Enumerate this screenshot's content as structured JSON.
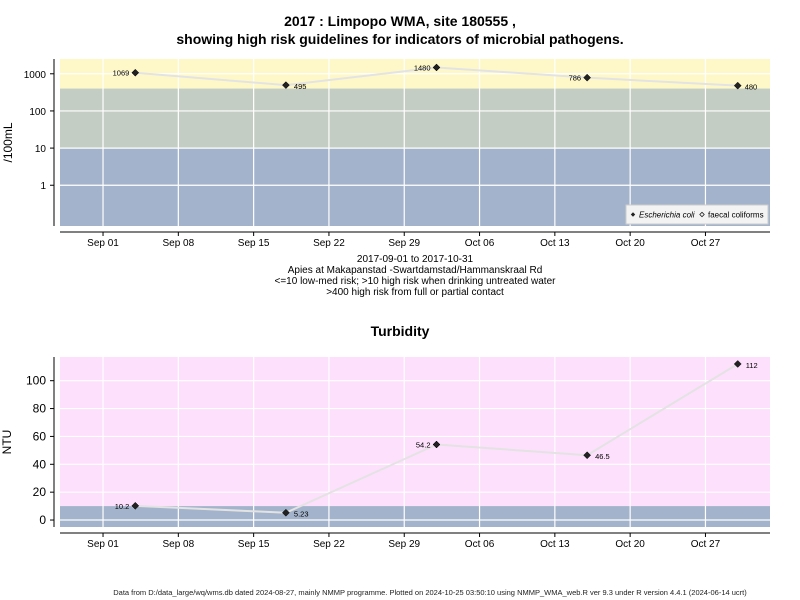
{
  "titles": {
    "main_line1": "2017 : Limpopo WMA, site 180555 ,",
    "main_line2": "showing high risk guidelines for indicators of microbial pathogens.",
    "turbidity": "Turbidity"
  },
  "caption": {
    "dates": "2017-09-01 to 2017-10-31",
    "site": "Apies at Makapanstad -Swartdamstad/Hammanskraal Rd",
    "risk1": "<=10 low-med risk; >10 high risk when drinking untreated water",
    "risk2": ">400 high risk from full or partial contact"
  },
  "footer": "Data from D:/data_large/wq/wms.db dated 2024-08-27, mainly NMMP programme. Plotted on 2024-10-25 03:50:10 using NMMP_WMA_web.R ver 9.3 under R version 4.4.1 (2024-06-14 ucrt)",
  "colors": {
    "zone_low": "#a3b3cb",
    "zone_mid": "#c3cdc3",
    "zone_high": "#fef8c8",
    "turb_high": "#fde0fb",
    "grid": "#ffffff",
    "line": "#e3e3e3",
    "point": "#222222"
  },
  "chart_data": [
    {
      "type": "line",
      "title": "2017 : Limpopo WMA, site 180555 , showing high risk guidelines for indicators of microbial pathogens.",
      "ylabel": "/100mL",
      "y_scale": "log",
      "ylim": [
        0.08,
        2500
      ],
      "y_ticks": [
        1,
        10,
        100,
        1000
      ],
      "y_tick_labels": [
        "1",
        "10",
        "100",
        "1000"
      ],
      "xlim": [
        "2017-08-28",
        "2017-11-02"
      ],
      "x_ticks": [
        "2017-09-01",
        "2017-09-08",
        "2017-09-15",
        "2017-09-22",
        "2017-09-29",
        "2017-10-06",
        "2017-10-13",
        "2017-10-20",
        "2017-10-27"
      ],
      "x_tick_labels": [
        "Sep 01",
        "Sep 08",
        "Sep 15",
        "Sep 22",
        "Sep 29",
        "Oct 06",
        "Oct 13",
        "Oct 20",
        "Oct 27"
      ],
      "grid": true,
      "zones": [
        {
          "from": 400,
          "to": 2500,
          "color": "#fef8c8"
        },
        {
          "from": 10,
          "to": 400,
          "color": "#c3cdc3"
        },
        {
          "from": 0.08,
          "to": 10,
          "color": "#a3b3cb"
        }
      ],
      "legend": {
        "position": "bottom-right",
        "entries": [
          {
            "label": "Escherichia coli",
            "marker": "filled-diamond",
            "italic": true
          },
          {
            "label": "faecal coliforms",
            "marker": "open-diamond",
            "italic": false
          }
        ]
      },
      "series": [
        {
          "name": "Escherichia coli",
          "x": [
            "2017-09-04",
            "2017-09-18",
            "2017-10-02",
            "2017-10-16",
            "2017-10-30"
          ],
          "values": [
            1069,
            495,
            1480,
            786,
            480
          ],
          "labels": [
            "1069",
            "495",
            "1480",
            "786",
            "480"
          ]
        }
      ]
    },
    {
      "type": "line",
      "title": "Turbidity",
      "ylabel": "NTU",
      "ylim": [
        -5,
        117
      ],
      "y_ticks": [
        0,
        20,
        40,
        60,
        80,
        100
      ],
      "y_tick_labels": [
        "0",
        "20",
        "40",
        "60",
        "80",
        "100"
      ],
      "xlim": [
        "2017-08-28",
        "2017-11-02"
      ],
      "x_ticks": [
        "2017-09-01",
        "2017-09-08",
        "2017-09-15",
        "2017-09-22",
        "2017-09-29",
        "2017-10-06",
        "2017-10-13",
        "2017-10-20",
        "2017-10-27"
      ],
      "x_tick_labels": [
        "Sep 01",
        "Sep 08",
        "Sep 15",
        "Sep 22",
        "Sep 29",
        "Oct 06",
        "Oct 13",
        "Oct 20",
        "Oct 27"
      ],
      "grid": true,
      "zones": [
        {
          "from": 10,
          "to": 117,
          "color": "#fde0fb"
        },
        {
          "from": -5,
          "to": 10,
          "color": "#a3b3cb"
        }
      ],
      "series": [
        {
          "x": [
            "2017-09-04",
            "2017-09-18",
            "2017-10-02",
            "2017-10-16",
            "2017-10-30"
          ],
          "values": [
            10.2,
            5.23,
            54.2,
            46.5,
            112
          ],
          "labels": [
            "10.2",
            "5.23",
            "54.2",
            "46.5",
            "112"
          ]
        }
      ]
    }
  ]
}
